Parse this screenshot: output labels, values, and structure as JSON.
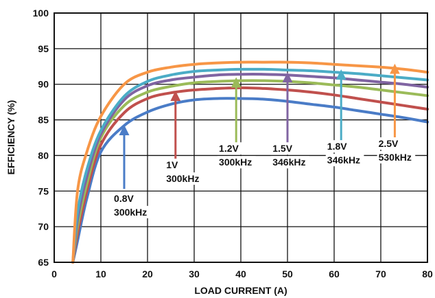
{
  "chart_data": {
    "type": "line",
    "title": "",
    "xlabel": "LOAD CURRENT (A)",
    "ylabel": "EFFICIENCY (%)",
    "xlim": [
      0,
      80
    ],
    "ylim": [
      65,
      100
    ],
    "xticks": [
      0,
      10,
      20,
      30,
      40,
      50,
      60,
      70,
      80
    ],
    "yticks": [
      65,
      70,
      75,
      80,
      85,
      90,
      95,
      100
    ],
    "grid": true,
    "legend": "none",
    "series": [
      {
        "color": "#4A7CC7",
        "x": [
          4,
          5,
          7,
          10,
          15,
          20,
          25,
          30,
          35,
          40,
          45,
          50,
          55,
          60,
          65,
          70,
          75,
          80
        ],
        "y": [
          65,
          68,
          74,
          80.5,
          84.2,
          86.1,
          87.2,
          87.8,
          88.0,
          88.0,
          87.9,
          87.6,
          87.2,
          86.8,
          86.3,
          85.8,
          85.3,
          84.7
        ]
      },
      {
        "color": "#C0504D",
        "x": [
          4,
          5,
          7,
          10,
          15,
          20,
          25,
          30,
          35,
          40,
          45,
          50,
          55,
          60,
          65,
          70,
          75,
          80
        ],
        "y": [
          65,
          69,
          75,
          81.5,
          86.0,
          88.0,
          88.8,
          89.2,
          89.4,
          89.5,
          89.4,
          89.2,
          88.9,
          88.5,
          88.0,
          87.5,
          87.0,
          86.5
        ]
      },
      {
        "color": "#9BBB59",
        "x": [
          4,
          5,
          7,
          10,
          15,
          20,
          25,
          30,
          35,
          40,
          45,
          50,
          55,
          60,
          65,
          70,
          75,
          80
        ],
        "y": [
          65,
          70,
          76,
          82.5,
          87.0,
          88.9,
          89.7,
          90.2,
          90.4,
          90.5,
          90.5,
          90.4,
          90.2,
          89.9,
          89.6,
          89.2,
          88.8,
          88.4
        ]
      },
      {
        "color": "#8064A2",
        "x": [
          4,
          5,
          7,
          10,
          15,
          20,
          25,
          30,
          35,
          40,
          45,
          50,
          55,
          60,
          65,
          70,
          75,
          80
        ],
        "y": [
          65,
          71,
          77,
          83.0,
          87.8,
          89.8,
          90.6,
          91.0,
          91.3,
          91.4,
          91.4,
          91.3,
          91.1,
          90.9,
          90.6,
          90.3,
          90.0,
          89.6
        ]
      },
      {
        "color": "#4BACC6",
        "x": [
          4,
          5,
          7,
          10,
          15,
          20,
          25,
          30,
          35,
          40,
          45,
          50,
          55,
          60,
          65,
          70,
          75,
          80
        ],
        "y": [
          65,
          72,
          78,
          83.5,
          88.3,
          90.4,
          91.3,
          91.8,
          92.0,
          92.1,
          92.1,
          92.0,
          91.9,
          91.7,
          91.5,
          91.2,
          90.9,
          90.6
        ]
      },
      {
        "color": "#F79646",
        "x": [
          4,
          5,
          7,
          10,
          15,
          20,
          25,
          30,
          35,
          40,
          45,
          50,
          55,
          60,
          65,
          70,
          75,
          80
        ],
        "y": [
          65,
          75,
          80.5,
          85.5,
          90.0,
          91.7,
          92.4,
          92.8,
          93.0,
          93.1,
          93.1,
          93.1,
          93.0,
          92.8,
          92.6,
          92.4,
          92.1,
          91.7
        ]
      }
    ],
    "annotations": [
      {
        "lines": [
          "0.8V",
          "300kHz"
        ],
        "color": "#4A7CC7",
        "arrow_x": 15,
        "arrow_from_y": 75.3,
        "arrow_to_y": 84.0,
        "text_x": 12.8,
        "text_y": 73.5
      },
      {
        "lines": [
          "1V",
          "300kHz"
        ],
        "color": "#C0504D",
        "arrow_x": 26,
        "arrow_from_y": 79.4,
        "arrow_to_y": 88.8,
        "text_x": 24.0,
        "text_y": 78.2
      },
      {
        "lines": [
          "1.2V",
          "300kHz"
        ],
        "color": "#9BBB59",
        "arrow_x": 39,
        "arrow_from_y": 80.5,
        "arrow_to_y": 90.7,
        "text_x": 35.3,
        "text_y": 80.5
      },
      {
        "lines": [
          "1.5V",
          "346kHz"
        ],
        "color": "#8064A2",
        "arrow_x": 50,
        "arrow_from_y": 80.6,
        "arrow_to_y": 91.4,
        "text_x": 46.8,
        "text_y": 80.5
      },
      {
        "lines": [
          "1.8V",
          "346kHz"
        ],
        "color": "#4BACC6",
        "arrow_x": 61.5,
        "arrow_from_y": 80.8,
        "arrow_to_y": 91.8,
        "text_x": 58.5,
        "text_y": 80.8
      },
      {
        "lines": [
          "2.5V",
          "530kHz"
        ],
        "color": "#F79646",
        "arrow_x": 73,
        "arrow_from_y": 81.0,
        "arrow_to_y": 92.6,
        "text_x": 69.5,
        "text_y": 81.2
      }
    ]
  }
}
